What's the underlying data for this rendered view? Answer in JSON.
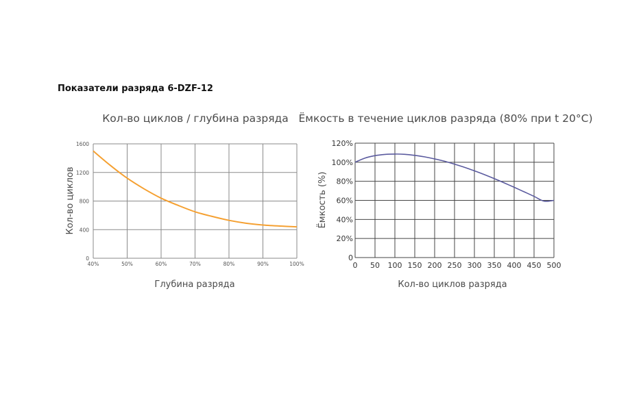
{
  "page": {
    "heading": "Показатели разряда 6-DZF-12"
  },
  "chart_data": [
    {
      "type": "line",
      "title": "Кол-во циклов / глубина разряда",
      "xlabel": "Глубина разряда",
      "ylabel": "Кол-во циклов",
      "x_tick_labels": [
        "40%",
        "50%",
        "60%",
        "70%",
        "80%",
        "90%",
        "100%"
      ],
      "y_tick_labels": [
        "0",
        "400",
        "800",
        "1200",
        "1600"
      ],
      "xlim": [
        40,
        100
      ],
      "ylim": [
        0,
        1600
      ],
      "grid": true,
      "series": [
        {
          "color": "#f5a031",
          "x": [
            40,
            45,
            50,
            55,
            60,
            65,
            70,
            75,
            80,
            85,
            90,
            95,
            100
          ],
          "y": [
            1500,
            1300,
            1120,
            970,
            840,
            740,
            650,
            585,
            530,
            490,
            465,
            450,
            440
          ]
        }
      ]
    },
    {
      "type": "line",
      "title": "Ёмкость в течение циклов разряда (80% при t 20°C)",
      "xlabel": "Кол-во циклов разряда",
      "ylabel": "Ёмкость (%)",
      "x_tick_labels": [
        "0",
        "50",
        "100",
        "150",
        "200",
        "250",
        "300",
        "350",
        "400",
        "450",
        "500"
      ],
      "y_tick_labels": [
        "0",
        "20%",
        "40%",
        "60%",
        "80%",
        "100%",
        "120%"
      ],
      "xlim": [
        0,
        500
      ],
      "ylim": [
        0,
        120
      ],
      "grid": true,
      "series": [
        {
          "color": "#5a5a9e",
          "x": [
            0,
            25,
            50,
            75,
            100,
            125,
            150,
            175,
            200,
            225,
            250,
            275,
            300,
            325,
            350,
            375,
            400,
            425,
            450,
            475,
            500
          ],
          "y": [
            100,
            104.4,
            106.9,
            108.2,
            108.6,
            108.3,
            107.2,
            105.6,
            103.5,
            101,
            98,
            94.7,
            91,
            87,
            82.8,
            78.3,
            73.7,
            69,
            64.2,
            59.2,
            60
          ]
        }
      ]
    }
  ]
}
